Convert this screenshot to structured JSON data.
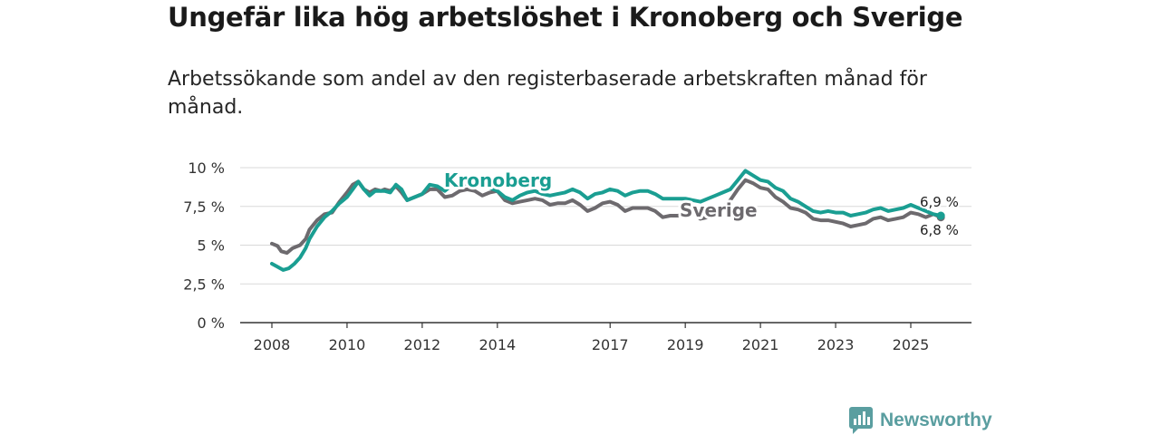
{
  "title": "Ungefär lika hög arbetslöshet i Kronoberg och Sverige",
  "subtitle": "Arbetssökande som andel av den registerbaserade arbetskraften månad för månad.",
  "brand": {
    "name": "Newsworthy",
    "color": "#5a9ea0",
    "icon": "newsworthy-logo-icon"
  },
  "chart_data": {
    "type": "line",
    "title": "Ungefär lika hög arbetslöshet i Kronoberg och Sverige",
    "xlabel": "",
    "ylabel": "",
    "ylim": [
      0,
      10
    ],
    "xlim": [
      2008,
      2026.2
    ],
    "yticks": [
      {
        "value": 0,
        "label": "0 %"
      },
      {
        "value": 2.5,
        "label": "2,5 %"
      },
      {
        "value": 5,
        "label": "5 %"
      },
      {
        "value": 7.5,
        "label": "7,5 %"
      },
      {
        "value": 10,
        "label": "10 %"
      }
    ],
    "xticks": [
      {
        "value": 2008,
        "label": "2008"
      },
      {
        "value": 2010,
        "label": "2010"
      },
      {
        "value": 2012,
        "label": "2012"
      },
      {
        "value": 2014,
        "label": "2014"
      },
      {
        "value": 2017,
        "label": "2017"
      },
      {
        "value": 2019,
        "label": "2019"
      },
      {
        "value": 2021,
        "label": "2021"
      },
      {
        "value": 2023,
        "label": "2023"
      },
      {
        "value": 2025,
        "label": "2025"
      }
    ],
    "series": [
      {
        "name": "Sverige",
        "color": "#6d6a6e",
        "end_label": "6,8 %",
        "points": [
          [
            2008.0,
            5.1
          ],
          [
            2008.15,
            4.95
          ],
          [
            2008.25,
            4.6
          ],
          [
            2008.4,
            4.5
          ],
          [
            2008.55,
            4.8
          ],
          [
            2008.75,
            5.0
          ],
          [
            2008.9,
            5.4
          ],
          [
            2009.0,
            6.0
          ],
          [
            2009.2,
            6.6
          ],
          [
            2009.4,
            7.0
          ],
          [
            2009.6,
            7.1
          ],
          [
            2009.8,
            7.8
          ],
          [
            2010.0,
            8.4
          ],
          [
            2010.15,
            8.9
          ],
          [
            2010.3,
            9.1
          ],
          [
            2010.45,
            8.6
          ],
          [
            2010.6,
            8.4
          ],
          [
            2010.75,
            8.6
          ],
          [
            2010.9,
            8.5
          ],
          [
            2011.0,
            8.6
          ],
          [
            2011.15,
            8.5
          ],
          [
            2011.3,
            8.8
          ],
          [
            2011.45,
            8.4
          ],
          [
            2011.6,
            7.9
          ],
          [
            2011.8,
            8.1
          ],
          [
            2012.0,
            8.3
          ],
          [
            2012.2,
            8.6
          ],
          [
            2012.4,
            8.6
          ],
          [
            2012.6,
            8.1
          ],
          [
            2012.8,
            8.2
          ],
          [
            2013.0,
            8.5
          ],
          [
            2013.2,
            8.6
          ],
          [
            2013.4,
            8.5
          ],
          [
            2013.6,
            8.2
          ],
          [
            2013.8,
            8.4
          ],
          [
            2014.0,
            8.5
          ],
          [
            2014.2,
            7.9
          ],
          [
            2014.4,
            7.7
          ],
          [
            2014.6,
            7.8
          ],
          [
            2014.8,
            7.9
          ],
          [
            2015.0,
            8.0
          ],
          [
            2015.2,
            7.9
          ],
          [
            2015.4,
            7.6
          ],
          [
            2015.6,
            7.7
          ],
          [
            2015.8,
            7.7
          ],
          [
            2016.0,
            7.9
          ],
          [
            2016.2,
            7.6
          ],
          [
            2016.4,
            7.2
          ],
          [
            2016.6,
            7.4
          ],
          [
            2016.8,
            7.7
          ],
          [
            2017.0,
            7.8
          ],
          [
            2017.2,
            7.6
          ],
          [
            2017.4,
            7.2
          ],
          [
            2017.6,
            7.4
          ],
          [
            2017.8,
            7.4
          ],
          [
            2018.0,
            7.4
          ],
          [
            2018.2,
            7.2
          ],
          [
            2018.4,
            6.8
          ],
          [
            2018.6,
            6.9
          ],
          [
            2018.8,
            6.9
          ],
          [
            2019.0,
            7.0
          ],
          [
            2019.2,
            7.1
          ],
          [
            2019.4,
            6.7
          ],
          [
            2019.6,
            6.8
          ],
          [
            2019.8,
            7.3
          ],
          [
            2020.0,
            7.4
          ],
          [
            2020.2,
            7.9
          ],
          [
            2020.4,
            8.6
          ],
          [
            2020.6,
            9.2
          ],
          [
            2020.8,
            9.0
          ],
          [
            2021.0,
            8.7
          ],
          [
            2021.2,
            8.6
          ],
          [
            2021.4,
            8.1
          ],
          [
            2021.6,
            7.8
          ],
          [
            2021.8,
            7.4
          ],
          [
            2022.0,
            7.3
          ],
          [
            2022.2,
            7.1
          ],
          [
            2022.4,
            6.7
          ],
          [
            2022.6,
            6.6
          ],
          [
            2022.8,
            6.6
          ],
          [
            2023.0,
            6.5
          ],
          [
            2023.2,
            6.4
          ],
          [
            2023.4,
            6.2
          ],
          [
            2023.6,
            6.3
          ],
          [
            2023.8,
            6.4
          ],
          [
            2024.0,
            6.7
          ],
          [
            2024.2,
            6.8
          ],
          [
            2024.4,
            6.6
          ],
          [
            2024.6,
            6.7
          ],
          [
            2024.8,
            6.8
          ],
          [
            2025.0,
            7.1
          ],
          [
            2025.2,
            7.0
          ],
          [
            2025.4,
            6.8
          ],
          [
            2025.6,
            7.0
          ],
          [
            2025.8,
            6.8
          ]
        ]
      },
      {
        "name": "Kronoberg",
        "color": "#1a9e92",
        "end_label": "6,9 %",
        "points": [
          [
            2008.0,
            3.8
          ],
          [
            2008.15,
            3.6
          ],
          [
            2008.3,
            3.4
          ],
          [
            2008.45,
            3.5
          ],
          [
            2008.6,
            3.8
          ],
          [
            2008.75,
            4.2
          ],
          [
            2008.9,
            4.8
          ],
          [
            2009.0,
            5.4
          ],
          [
            2009.2,
            6.2
          ],
          [
            2009.4,
            6.8
          ],
          [
            2009.6,
            7.2
          ],
          [
            2009.8,
            7.7
          ],
          [
            2010.0,
            8.1
          ],
          [
            2010.15,
            8.6
          ],
          [
            2010.3,
            9.1
          ],
          [
            2010.45,
            8.6
          ],
          [
            2010.6,
            8.2
          ],
          [
            2010.75,
            8.5
          ],
          [
            2010.9,
            8.5
          ],
          [
            2011.0,
            8.5
          ],
          [
            2011.15,
            8.4
          ],
          [
            2011.3,
            8.9
          ],
          [
            2011.45,
            8.6
          ],
          [
            2011.6,
            7.9
          ],
          [
            2011.8,
            8.1
          ],
          [
            2012.0,
            8.3
          ],
          [
            2012.2,
            8.9
          ],
          [
            2012.4,
            8.8
          ],
          [
            2012.6,
            8.5
          ],
          [
            2012.8,
            8.9
          ],
          [
            2013.0,
            8.8
          ],
          [
            2013.2,
            9.0
          ],
          [
            2013.4,
            8.8
          ],
          [
            2013.6,
            8.9
          ],
          [
            2013.8,
            8.7
          ],
          [
            2014.0,
            8.5
          ],
          [
            2014.2,
            8.1
          ],
          [
            2014.4,
            7.9
          ],
          [
            2014.6,
            8.2
          ],
          [
            2014.8,
            8.4
          ],
          [
            2015.0,
            8.5
          ],
          [
            2015.2,
            8.3
          ],
          [
            2015.4,
            8.2
          ],
          [
            2015.6,
            8.3
          ],
          [
            2015.8,
            8.4
          ],
          [
            2016.0,
            8.6
          ],
          [
            2016.2,
            8.4
          ],
          [
            2016.4,
            8.0
          ],
          [
            2016.6,
            8.3
          ],
          [
            2016.8,
            8.4
          ],
          [
            2017.0,
            8.6
          ],
          [
            2017.2,
            8.5
          ],
          [
            2017.4,
            8.2
          ],
          [
            2017.6,
            8.4
          ],
          [
            2017.8,
            8.5
          ],
          [
            2018.0,
            8.5
          ],
          [
            2018.2,
            8.3
          ],
          [
            2018.4,
            8.0
          ],
          [
            2018.6,
            8.0
          ],
          [
            2018.8,
            8.0
          ],
          [
            2019.0,
            8.0
          ],
          [
            2019.2,
            7.9
          ],
          [
            2019.4,
            7.8
          ],
          [
            2019.6,
            8.0
          ],
          [
            2019.8,
            8.2
          ],
          [
            2020.0,
            8.4
          ],
          [
            2020.2,
            8.6
          ],
          [
            2020.4,
            9.2
          ],
          [
            2020.6,
            9.8
          ],
          [
            2020.8,
            9.5
          ],
          [
            2021.0,
            9.2
          ],
          [
            2021.2,
            9.1
          ],
          [
            2021.4,
            8.7
          ],
          [
            2021.6,
            8.5
          ],
          [
            2021.8,
            8.0
          ],
          [
            2022.0,
            7.8
          ],
          [
            2022.2,
            7.5
          ],
          [
            2022.4,
            7.2
          ],
          [
            2022.6,
            7.1
          ],
          [
            2022.8,
            7.2
          ],
          [
            2023.0,
            7.1
          ],
          [
            2023.2,
            7.1
          ],
          [
            2023.4,
            6.9
          ],
          [
            2023.6,
            7.0
          ],
          [
            2023.8,
            7.1
          ],
          [
            2024.0,
            7.3
          ],
          [
            2024.2,
            7.4
          ],
          [
            2024.4,
            7.2
          ],
          [
            2024.6,
            7.3
          ],
          [
            2024.8,
            7.4
          ],
          [
            2025.0,
            7.6
          ],
          [
            2025.2,
            7.4
          ],
          [
            2025.4,
            7.2
          ],
          [
            2025.6,
            7.0
          ],
          [
            2025.8,
            6.9
          ]
        ]
      }
    ]
  }
}
